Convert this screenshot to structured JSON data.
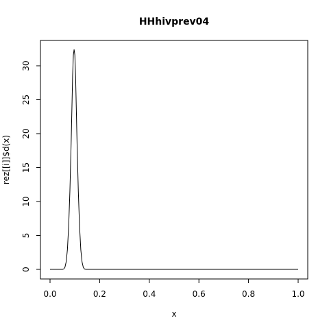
{
  "chart_data": {
    "type": "line",
    "title": "HHhivprev04",
    "xlabel": "x",
    "ylabel": "rez[[i]]$d(x)",
    "xlim": [
      0,
      1
    ],
    "ylim": [
      0,
      32.5
    ],
    "x_ticks": [
      0.0,
      0.2,
      0.4,
      0.6,
      0.8,
      1.0
    ],
    "x_tick_labels": [
      "0.0",
      "0.2",
      "0.4",
      "0.6",
      "0.8",
      "1.0"
    ],
    "y_ticks": [
      0,
      5,
      10,
      15,
      20,
      25,
      30
    ],
    "y_tick_labels": [
      "0",
      "5",
      "10",
      "15",
      "20",
      "25",
      "30"
    ],
    "grid": false,
    "series": [
      {
        "values": [
          [
            0.0,
            0.0
          ],
          [
            0.05,
            0.0
          ],
          [
            0.055,
            0.05
          ],
          [
            0.06,
            0.3
          ],
          [
            0.065,
            1.1
          ],
          [
            0.07,
            2.9
          ],
          [
            0.075,
            6.3
          ],
          [
            0.08,
            11.5
          ],
          [
            0.085,
            18.5
          ],
          [
            0.088,
            23.5
          ],
          [
            0.091,
            28.5
          ],
          [
            0.094,
            31.6
          ],
          [
            0.097,
            32.4
          ],
          [
            0.1,
            31.6
          ],
          [
            0.103,
            28.5
          ],
          [
            0.106,
            23.5
          ],
          [
            0.109,
            18.5
          ],
          [
            0.114,
            11.5
          ],
          [
            0.119,
            6.3
          ],
          [
            0.124,
            2.9
          ],
          [
            0.129,
            1.1
          ],
          [
            0.134,
            0.3
          ],
          [
            0.139,
            0.05
          ],
          [
            0.145,
            0.0
          ],
          [
            0.2,
            0.0
          ],
          [
            0.4,
            0.0
          ],
          [
            0.6,
            0.0
          ],
          [
            0.8,
            0.0
          ],
          [
            1.0,
            0.0
          ]
        ],
        "color": "#000000"
      }
    ]
  }
}
